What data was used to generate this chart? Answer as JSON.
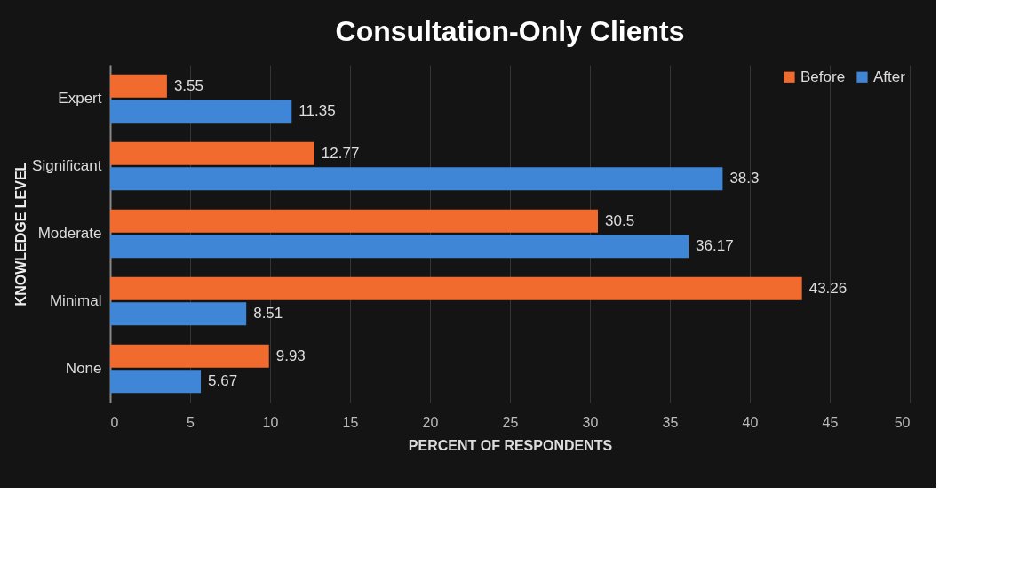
{
  "chart_data": {
    "type": "bar",
    "orientation": "horizontal",
    "title": "Consultation-Only Clients",
    "xlabel": "PERCENT OF RESPONDENTS",
    "ylabel": "KNOWLEDGE LEVEL",
    "categories": [
      "Expert",
      "Significant",
      "Moderate",
      "Minimal",
      "None"
    ],
    "series": [
      {
        "name": "Before",
        "color": "#f26b2e",
        "values": [
          3.55,
          12.77,
          30.5,
          43.26,
          9.93
        ]
      },
      {
        "name": "After",
        "color": "#3f86d6",
        "values": [
          11.35,
          38.3,
          36.17,
          8.51,
          5.67
        ]
      }
    ],
    "xlim": [
      0,
      50
    ],
    "xticks": [
      0,
      5,
      10,
      15,
      20,
      25,
      30,
      35,
      40,
      45,
      50
    ],
    "grid": "x",
    "legend": "top right",
    "data_labels": true
  }
}
